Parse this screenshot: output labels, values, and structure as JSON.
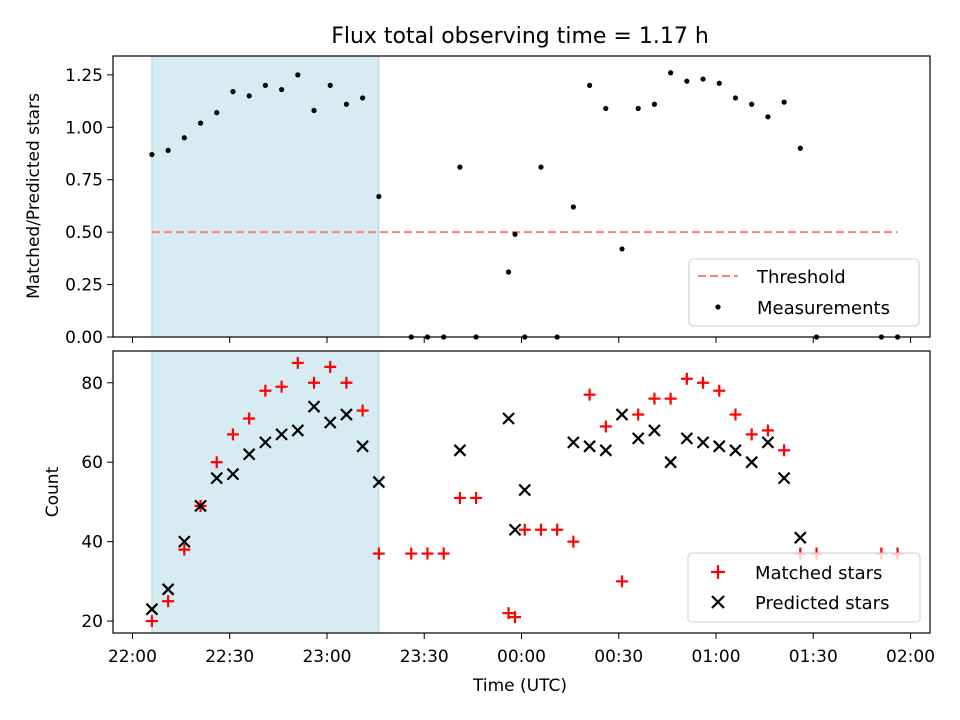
{
  "chart_data": [
    {
      "type": "scatter",
      "title": "Flux total observing time = 1.17 h",
      "xlabel": "",
      "ylabel": "Matched/Predicted stars",
      "xlim": [
        "21:54",
        "02:06"
      ],
      "ylim": [
        0,
        1.34
      ],
      "yticks": [
        "0.00",
        "0.25",
        "0.50",
        "0.75",
        "1.00",
        "1.25"
      ],
      "xticks": [
        "22:00",
        "22:30",
        "23:00",
        "23:30",
        "00:00",
        "00:30",
        "01:00",
        "01:30",
        "02:00"
      ],
      "x_tick_labels_shown": false,
      "shaded_span": [
        "22:06",
        "23:16"
      ],
      "threshold": {
        "name": "Threshold",
        "y": 0.5,
        "x_range": [
          "22:06",
          "01:56"
        ],
        "color": "#ff7f7f",
        "style": "dashed"
      },
      "series": [
        {
          "name": "Measurements",
          "marker": "dot",
          "color": "#000000",
          "points": [
            [
              "22:06",
              0.87
            ],
            [
              "22:11",
              0.89
            ],
            [
              "22:16",
              0.95
            ],
            [
              "22:21",
              1.02
            ],
            [
              "22:26",
              1.07
            ],
            [
              "22:31",
              1.17
            ],
            [
              "22:36",
              1.15
            ],
            [
              "22:41",
              1.2
            ],
            [
              "22:46",
              1.18
            ],
            [
              "22:51",
              1.25
            ],
            [
              "22:56",
              1.08
            ],
            [
              "23:01",
              1.2
            ],
            [
              "23:06",
              1.11
            ],
            [
              "23:11",
              1.14
            ],
            [
              "23:16",
              0.67
            ],
            [
              "23:26",
              0.0
            ],
            [
              "23:31",
              0.0
            ],
            [
              "23:36",
              0.0
            ],
            [
              "23:41",
              0.81
            ],
            [
              "23:46",
              0.0
            ],
            [
              "23:56",
              0.31
            ],
            [
              "23:58",
              0.49
            ],
            [
              "00:01",
              0.0
            ],
            [
              "00:06",
              0.81
            ],
            [
              "00:11",
              0.0
            ],
            [
              "00:16",
              0.62
            ],
            [
              "00:21",
              1.2
            ],
            [
              "00:26",
              1.09
            ],
            [
              "00:31",
              0.42
            ],
            [
              "00:36",
              1.09
            ],
            [
              "00:41",
              1.11
            ],
            [
              "00:46",
              1.26
            ],
            [
              "00:51",
              1.22
            ],
            [
              "00:56",
              1.23
            ],
            [
              "01:01",
              1.21
            ],
            [
              "01:06",
              1.14
            ],
            [
              "01:11",
              1.11
            ],
            [
              "01:16",
              1.05
            ],
            [
              "01:21",
              1.12
            ],
            [
              "01:26",
              0.9
            ],
            [
              "01:31",
              0.0
            ],
            [
              "01:51",
              0.0
            ],
            [
              "01:56",
              0.0
            ]
          ]
        }
      ],
      "legend": {
        "placement": "lower right",
        "entries": [
          "Threshold",
          "Measurements"
        ]
      }
    },
    {
      "type": "scatter",
      "title": "",
      "xlabel": "Time (UTC)",
      "ylabel": "Count",
      "xlim": [
        "21:54",
        "02:06"
      ],
      "ylim": [
        17,
        88
      ],
      "yticks": [
        "20",
        "40",
        "60",
        "80"
      ],
      "xticks": [
        "22:00",
        "22:30",
        "23:00",
        "23:30",
        "00:00",
        "00:30",
        "01:00",
        "01:30",
        "02:00"
      ],
      "x_tick_labels_shown": true,
      "shaded_span": [
        "22:06",
        "23:16"
      ],
      "series": [
        {
          "name": "Matched stars",
          "marker": "plus",
          "color": "#ff0000",
          "points": [
            [
              "22:06",
              20
            ],
            [
              "22:11",
              25
            ],
            [
              "22:16",
              38
            ],
            [
              "22:21",
              49
            ],
            [
              "22:26",
              60
            ],
            [
              "22:31",
              67
            ],
            [
              "22:36",
              71
            ],
            [
              "22:41",
              78
            ],
            [
              "22:46",
              79
            ],
            [
              "22:51",
              85
            ],
            [
              "22:56",
              80
            ],
            [
              "23:01",
              84
            ],
            [
              "23:06",
              80
            ],
            [
              "23:11",
              73
            ],
            [
              "23:16",
              37
            ],
            [
              "23:26",
              37
            ],
            [
              "23:31",
              37
            ],
            [
              "23:36",
              37
            ],
            [
              "23:41",
              51
            ],
            [
              "23:46",
              51
            ],
            [
              "23:56",
              22
            ],
            [
              "23:58",
              21
            ],
            [
              "00:01",
              43
            ],
            [
              "00:06",
              43
            ],
            [
              "00:11",
              43
            ],
            [
              "00:16",
              40
            ],
            [
              "00:21",
              77
            ],
            [
              "00:26",
              69
            ],
            [
              "00:31",
              30
            ],
            [
              "00:36",
              72
            ],
            [
              "00:41",
              76
            ],
            [
              "00:46",
              76
            ],
            [
              "00:51",
              81
            ],
            [
              "00:56",
              80
            ],
            [
              "01:01",
              78
            ],
            [
              "01:06",
              72
            ],
            [
              "01:11",
              67
            ],
            [
              "01:16",
              68
            ],
            [
              "01:21",
              63
            ],
            [
              "01:26",
              37
            ],
            [
              "01:31",
              37
            ],
            [
              "01:51",
              37
            ],
            [
              "01:56",
              37
            ]
          ]
        },
        {
          "name": "Predicted stars",
          "marker": "x",
          "color": "#000000",
          "points": [
            [
              "22:06",
              23
            ],
            [
              "22:11",
              28
            ],
            [
              "22:16",
              40
            ],
            [
              "22:21",
              49
            ],
            [
              "22:26",
              56
            ],
            [
              "22:31",
              57
            ],
            [
              "22:36",
              62
            ],
            [
              "22:41",
              65
            ],
            [
              "22:46",
              67
            ],
            [
              "22:51",
              68
            ],
            [
              "22:56",
              74
            ],
            [
              "23:01",
              70
            ],
            [
              "23:06",
              72
            ],
            [
              "23:11",
              64
            ],
            [
              "23:16",
              55
            ],
            [
              "23:41",
              63
            ],
            [
              "23:56",
              71
            ],
            [
              "23:58",
              43
            ],
            [
              "00:01",
              53
            ],
            [
              "00:16",
              65
            ],
            [
              "00:21",
              64
            ],
            [
              "00:26",
              63
            ],
            [
              "00:31",
              72
            ],
            [
              "00:36",
              66
            ],
            [
              "00:41",
              68
            ],
            [
              "00:46",
              60
            ],
            [
              "00:51",
              66
            ],
            [
              "00:56",
              65
            ],
            [
              "01:01",
              64
            ],
            [
              "01:06",
              63
            ],
            [
              "01:11",
              60
            ],
            [
              "01:16",
              65
            ],
            [
              "01:21",
              56
            ],
            [
              "01:26",
              41
            ]
          ]
        }
      ],
      "legend": {
        "placement": "lower right",
        "entries": [
          "Matched stars",
          "Predicted stars"
        ]
      }
    }
  ],
  "colors": {
    "shade": "#add8e6",
    "threshold": "#ff7f7f",
    "matched": "#ff0000",
    "predicted": "#000000"
  }
}
